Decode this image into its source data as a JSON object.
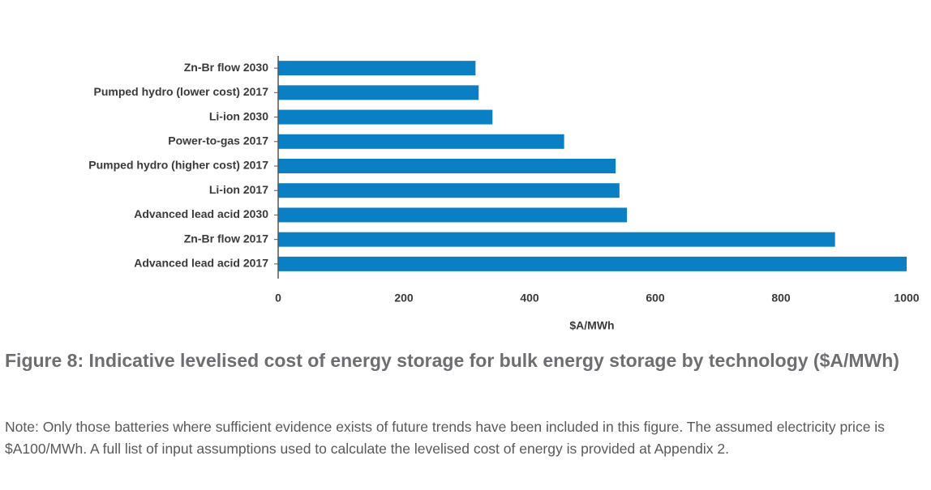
{
  "chart_data": {
    "type": "barh",
    "title": "Figure 8: Indicative levelised cost of energy storage for bulk energy storage by technology ($A/MWh)",
    "note": "Note: Only those batteries where sufficient evidence exists of future trends have been included in this figure. The assumed electricity price is $A100/MWh. A full list of input assumptions used to calculate the levelised cost of energy is provided at Appendix 2.",
    "xlabel": "$A/MWh",
    "categories": [
      "Zn-Br flow 2030",
      "Pumped hydro (lower cost) 2017",
      "Li-ion 2030",
      "Power-to-gas 2017",
      "Pumped hydro (higher cost) 2017",
      "Li-ion 2017",
      "Advanced lead acid 2030",
      "Zn-Br flow 2017",
      "Advanced lead acid 2017"
    ],
    "values": [
      314,
      319,
      341,
      455,
      537,
      543,
      555,
      886,
      1000
    ],
    "color": "#0a7fc3",
    "xlim": [
      0,
      1000
    ],
    "xticks": [
      0,
      200,
      400,
      600,
      800,
      1000
    ],
    "grid": false
  }
}
